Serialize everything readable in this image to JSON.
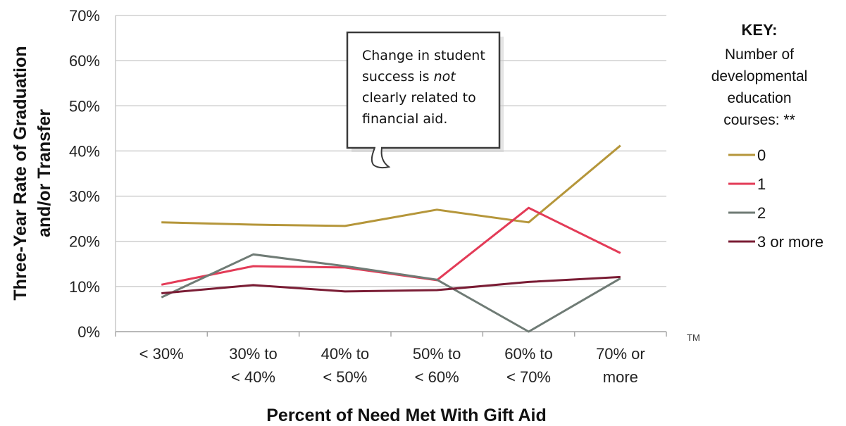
{
  "chart_data": {
    "type": "line",
    "categories": [
      [
        "< 30%"
      ],
      [
        "30% to",
        "< 40%"
      ],
      [
        "40% to",
        "< 50%"
      ],
      [
        "50% to",
        "< 60%"
      ],
      [
        "60% to",
        "< 70%"
      ],
      [
        "70% or",
        "more"
      ]
    ],
    "y_ticks": [
      "0%",
      "10%",
      "20%",
      "30%",
      "40%",
      "50%",
      "60%",
      "70%"
    ],
    "ylim": [
      0,
      70
    ],
    "ylabel_lines": [
      "Three-Year Rate of Graduation",
      "and/or Transfer"
    ],
    "xlabel": "Percent of Need Met With Gift Aid",
    "grid": true,
    "legend": {
      "title": "KEY:",
      "subtitle_lines": [
        "Number of",
        "developmental",
        "education",
        "courses: **"
      ],
      "placement": "right"
    },
    "series": [
      {
        "name": "0",
        "color": "#b5963a",
        "values": [
          24.2,
          23.7,
          23.4,
          27.0,
          24.2,
          41.2
        ]
      },
      {
        "name": "1",
        "color": "#e33b57",
        "values": [
          10.4,
          14.5,
          14.2,
          11.4,
          27.4,
          17.4
        ]
      },
      {
        "name": "2",
        "color": "#6f7b75",
        "values": [
          7.6,
          17.1,
          14.5,
          11.5,
          0.0,
          11.8
        ]
      },
      {
        "name": "3 or more",
        "color": "#7a1c34",
        "values": [
          8.5,
          10.3,
          8.9,
          9.2,
          11.0,
          12.1
        ]
      }
    ],
    "annotation": {
      "parts": [
        {
          "text": "Change in student",
          "italic": false
        },
        {
          "text": "success is ",
          "italic": false
        },
        {
          "text": "not",
          "italic": true
        },
        {
          "text": "clearly related to",
          "italic": false
        },
        {
          "text": "financial aid.",
          "italic": false
        }
      ]
    },
    "footnote_mark": "TM"
  }
}
